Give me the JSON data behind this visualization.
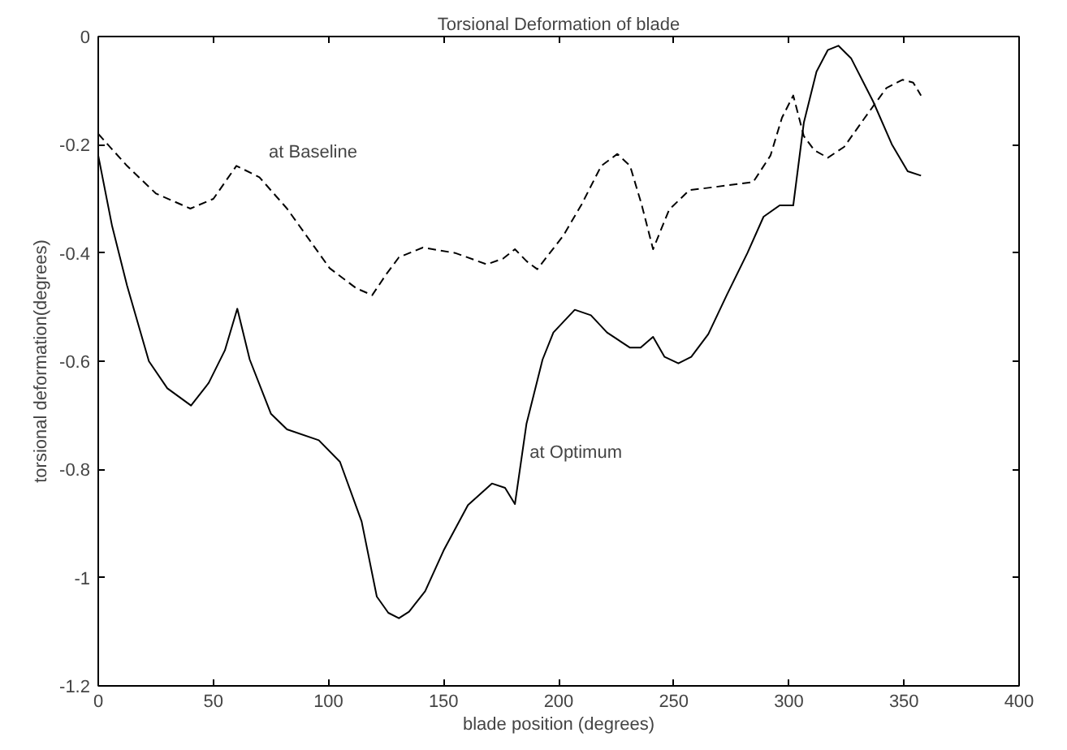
{
  "chart_data": {
    "type": "line",
    "title": "Torsional Deformation of blade",
    "xlabel": "blade position (degrees)",
    "ylabel": "torsional deformation(degrees)",
    "xlim": [
      0,
      400
    ],
    "ylim": [
      -1.2,
      0
    ],
    "xticks": [
      0,
      50,
      100,
      150,
      200,
      250,
      300,
      350,
      400
    ],
    "yticks": [
      -1.2,
      -1,
      -0.8,
      -0.6,
      -0.4,
      -0.2,
      0
    ],
    "grid": false,
    "marker": "none",
    "annotations": [
      {
        "text": "at Baseline",
        "x": 60,
        "y": -0.239
      },
      {
        "text": "at Optimum",
        "x": 186,
        "y": -0.716
      }
    ],
    "series": [
      {
        "color": "#000000",
        "line_style": "dashed",
        "x": [
          0,
          12.5,
          25,
          40,
          50,
          60,
          70,
          82,
          100.5,
          112,
          119,
          125,
          130.6,
          141,
          155,
          168.8,
          176,
          181,
          186,
          190.7,
          202,
          210,
          218.5,
          225.5,
          231,
          236,
          241,
          248,
          256.7,
          268,
          284.5,
          292,
          297,
          301.9,
          306.5,
          311,
          316.9,
          324,
          333,
          342.4,
          349.3,
          354,
          357.4
        ],
        "values": [
          -0.18,
          -0.239,
          -0.29,
          -0.318,
          -0.3,
          -0.239,
          -0.26,
          -0.318,
          -0.428,
          -0.465,
          -0.478,
          -0.44,
          -0.408,
          -0.39,
          -0.4,
          -0.421,
          -0.41,
          -0.393,
          -0.415,
          -0.43,
          -0.368,
          -0.31,
          -0.239,
          -0.217,
          -0.239,
          -0.31,
          -0.393,
          -0.32,
          -0.284,
          -0.278,
          -0.269,
          -0.22,
          -0.15,
          -0.109,
          -0.184,
          -0.21,
          -0.224,
          -0.204,
          -0.15,
          -0.095,
          -0.08,
          -0.085,
          -0.109
        ]
      },
      {
        "color": "#000000",
        "line_style": "solid",
        "x": [
          0,
          6,
          12.5,
          22,
          30,
          40.3,
          48,
          55,
          60.4,
          65.8,
          75,
          82,
          95.8,
          105,
          114.4,
          121,
          126,
          130.6,
          135,
          142,
          150,
          160.6,
          171,
          176.7,
          181,
          186,
          193,
          197.7,
          207,
          214,
          221,
          231,
          235.6,
          241,
          246,
          252,
          257.6,
          265,
          273,
          282,
          289,
          296,
          301.9,
          306.5,
          312,
          316.9,
          321.5,
          327,
          336.6,
          344.7,
          351.6,
          357.4
        ],
        "values": [
          -0.22,
          -0.35,
          -0.46,
          -0.6,
          -0.65,
          -0.682,
          -0.64,
          -0.58,
          -0.503,
          -0.597,
          -0.697,
          -0.726,
          -0.746,
          -0.786,
          -0.896,
          -1.035,
          -1.065,
          -1.075,
          -1.063,
          -1.025,
          -0.95,
          -0.866,
          -0.826,
          -0.834,
          -0.864,
          -0.716,
          -0.597,
          -0.547,
          -0.505,
          -0.515,
          -0.547,
          -0.575,
          -0.575,
          -0.555,
          -0.592,
          -0.604,
          -0.592,
          -0.55,
          -0.478,
          -0.4,
          -0.333,
          -0.312,
          -0.312,
          -0.159,
          -0.065,
          -0.025,
          -0.017,
          -0.04,
          -0.12,
          -0.199,
          -0.249,
          -0.257
        ]
      }
    ]
  }
}
